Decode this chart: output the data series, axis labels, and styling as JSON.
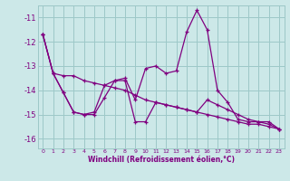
{
  "xlabel": "Windchill (Refroidissement éolien,°C)",
  "background_color": "#cce8e8",
  "grid_color": "#9dc8c8",
  "line_color": "#800080",
  "xlim": [
    -0.5,
    23.5
  ],
  "ylim": [
    -16.4,
    -10.5
  ],
  "xticks": [
    0,
    1,
    2,
    3,
    4,
    5,
    6,
    7,
    8,
    9,
    10,
    11,
    12,
    13,
    14,
    15,
    16,
    17,
    18,
    19,
    20,
    21,
    22,
    23
  ],
  "yticks": [
    -16,
    -15,
    -14,
    -13,
    -12,
    -11
  ],
  "series": [
    [
      [
        0,
        -11.7
      ],
      [
        1,
        -13.3
      ],
      [
        2,
        -13.4
      ],
      [
        3,
        -13.4
      ],
      [
        4,
        -13.6
      ],
      [
        5,
        -13.7
      ],
      [
        6,
        -13.8
      ],
      [
        7,
        -13.9
      ],
      [
        8,
        -14.0
      ],
      [
        9,
        -14.2
      ],
      [
        10,
        -14.4
      ],
      [
        11,
        -14.5
      ],
      [
        12,
        -14.6
      ],
      [
        13,
        -14.7
      ],
      [
        14,
        -14.8
      ],
      [
        15,
        -14.9
      ],
      [
        16,
        -14.4
      ],
      [
        17,
        -14.6
      ],
      [
        18,
        -14.8
      ],
      [
        19,
        -15.0
      ],
      [
        20,
        -15.2
      ],
      [
        21,
        -15.3
      ],
      [
        22,
        -15.4
      ],
      [
        23,
        -15.6
      ]
    ],
    [
      [
        0,
        -11.7
      ],
      [
        1,
        -13.3
      ],
      [
        2,
        -14.1
      ],
      [
        3,
        -14.9
      ],
      [
        4,
        -15.0
      ],
      [
        5,
        -15.0
      ],
      [
        6,
        -14.3
      ],
      [
        7,
        -13.6
      ],
      [
        8,
        -13.5
      ],
      [
        9,
        -14.4
      ],
      [
        10,
        -13.1
      ],
      [
        11,
        -13.0
      ],
      [
        12,
        -13.3
      ],
      [
        13,
        -13.2
      ],
      [
        14,
        -11.6
      ],
      [
        15,
        -10.7
      ],
      [
        16,
        -11.5
      ],
      [
        17,
        -14.0
      ],
      [
        18,
        -14.5
      ],
      [
        19,
        -15.2
      ],
      [
        20,
        -15.3
      ],
      [
        21,
        -15.3
      ],
      [
        22,
        -15.3
      ],
      [
        23,
        -15.6
      ]
    ],
    [
      [
        0,
        -11.7
      ],
      [
        1,
        -13.3
      ],
      [
        2,
        -14.1
      ],
      [
        3,
        -14.9
      ],
      [
        4,
        -15.0
      ],
      [
        5,
        -14.9
      ],
      [
        6,
        -13.8
      ],
      [
        7,
        -13.6
      ],
      [
        8,
        -13.6
      ],
      [
        9,
        -15.3
      ],
      [
        10,
        -15.3
      ],
      [
        11,
        -14.5
      ],
      [
        12,
        -14.6
      ],
      [
        13,
        -14.7
      ],
      [
        14,
        -14.8
      ],
      [
        15,
        -14.9
      ],
      [
        16,
        -15.0
      ],
      [
        17,
        -15.1
      ],
      [
        18,
        -15.2
      ],
      [
        19,
        -15.3
      ],
      [
        20,
        -15.4
      ],
      [
        21,
        -15.4
      ],
      [
        22,
        -15.5
      ],
      [
        23,
        -15.6
      ]
    ]
  ]
}
